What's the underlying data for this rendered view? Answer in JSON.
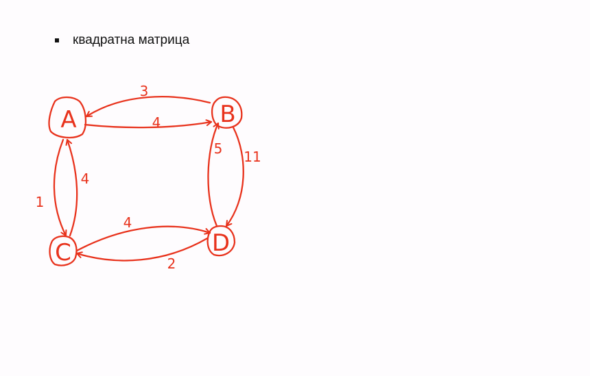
{
  "bullet": {
    "text": "квадратна матрица"
  },
  "ink_color": "#e8321c",
  "graph": {
    "nodes": [
      {
        "id": "A",
        "label": "A"
      },
      {
        "id": "B",
        "label": "B"
      },
      {
        "id": "C",
        "label": "C"
      },
      {
        "id": "D",
        "label": "D"
      }
    ],
    "edges": [
      {
        "from": "B",
        "to": "A",
        "weight": "3"
      },
      {
        "from": "A",
        "to": "B",
        "weight": "4"
      },
      {
        "from": "D",
        "to": "B",
        "weight": "5"
      },
      {
        "from": "B",
        "to": "D",
        "weight": "11"
      },
      {
        "from": "C",
        "to": "A",
        "weight": "4"
      },
      {
        "from": "A",
        "to": "C",
        "weight": "1"
      },
      {
        "from": "C",
        "to": "D",
        "weight": "4"
      },
      {
        "from": "D",
        "to": "C",
        "weight": "2"
      }
    ]
  }
}
